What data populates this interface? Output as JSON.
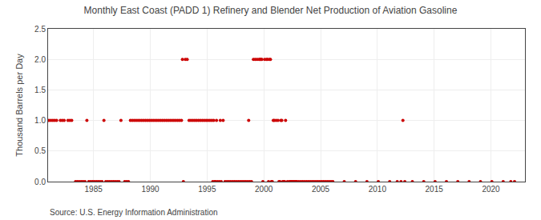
{
  "chart_data": {
    "type": "scatter",
    "title": "Monthly East Coast (PADD 1) Refinery and Blender Net Production of Aviation Gasoline",
    "ylabel": "Thousand Barrels per Day",
    "annotation": "Source: U.S. Energy Information Administration",
    "color": "#cc0000",
    "marker": "circle",
    "grid": true,
    "xlim": [
      1981.0,
      2023.0
    ],
    "ylim": [
      0.0,
      2.5
    ],
    "xticks": [
      1985,
      1990,
      1995,
      2000,
      2005,
      2010,
      2015,
      2020
    ],
    "yticks": [
      {
        "value": 0.0,
        "label": "0.0"
      },
      0.5,
      {
        "value": 1.0,
        "label": "1.0"
      },
      1.5,
      {
        "value": 2.0,
        "label": "2.0"
      },
      2.5
    ],
    "x": [
      1981.083,
      1981.25,
      1981.417,
      1981.583,
      1981.75,
      1982.083,
      1982.25,
      1982.417,
      1982.75,
      1982.917,
      1983.083,
      1983.417,
      1983.583,
      1983.75,
      1983.917,
      1984.083,
      1984.25,
      1984.417,
      1984.583,
      1984.75,
      1984.917,
      1985.083,
      1985.25,
      1985.417,
      1985.583,
      1985.75,
      1985.917,
      1986.083,
      1986.25,
      1986.417,
      1986.583,
      1986.75,
      1986.917,
      1987.083,
      1987.25,
      1987.417,
      1987.75,
      1987.917,
      1988.083,
      1988.25,
      1988.417,
      1988.583,
      1988.75,
      1988.917,
      1989.083,
      1989.25,
      1989.417,
      1989.583,
      1989.75,
      1989.917,
      1990.083,
      1990.25,
      1990.417,
      1990.583,
      1990.75,
      1990.917,
      1991.083,
      1991.25,
      1991.417,
      1991.583,
      1991.75,
      1991.917,
      1992.083,
      1992.25,
      1992.417,
      1992.583,
      1992.75,
      1992.833,
      1992.917,
      1993.083,
      1993.25,
      1993.417,
      1993.583,
      1993.75,
      1993.917,
      1994.083,
      1994.25,
      1994.417,
      1994.583,
      1994.75,
      1994.917,
      1995.083,
      1995.25,
      1995.417,
      1995.5,
      1995.583,
      1995.667,
      1995.75,
      1995.833,
      1995.917,
      1996.083,
      1996.167,
      1996.25,
      1996.417,
      1996.583,
      1996.75,
      1996.917,
      1997.083,
      1997.25,
      1997.417,
      1997.583,
      1997.75,
      1997.917,
      1998.083,
      1998.25,
      1998.417,
      1998.583,
      1998.667,
      1998.75,
      1998.917,
      1999.083,
      1999.25,
      1999.417,
      1999.583,
      1999.667,
      1999.75,
      1999.833,
      1999.917,
      2000.083,
      2000.25,
      2000.333,
      2000.417,
      2000.5,
      2000.583,
      2000.667,
      2000.75,
      2000.833,
      2000.917,
      2001.083,
      2001.25,
      2001.333,
      2001.417,
      2001.5,
      2001.583,
      2001.667,
      2001.75,
      2001.833,
      2001.917,
      2002.083,
      2002.25,
      2002.333,
      2002.417,
      2002.5,
      2002.583,
      2002.667,
      2002.75,
      2002.833,
      2002.917,
      2003.083,
      2003.25,
      2003.417,
      2003.583,
      2003.75,
      2003.917,
      2004.083,
      2004.25,
      2004.417,
      2004.583,
      2004.75,
      2004.917,
      2005.083,
      2005.25,
      2005.417,
      2005.583,
      2005.75,
      2005.917,
      2006.083,
      2007.083,
      2008.083,
      2009.083,
      2010.083,
      2011.083,
      2011.75,
      2012.083,
      2012.25,
      2012.417,
      2013.083,
      2014.083,
      2015.083,
      2016.083,
      2017.083,
      2018.083,
      2019.083,
      2020.083,
      2021.083,
      2021.75,
      2022.083
    ],
    "values": [
      1.0,
      1.0,
      1.0,
      1.0,
      1.0,
      1.0,
      1.0,
      1.0,
      1.0,
      1.0,
      1.0,
      0.0,
      0.0,
      0.0,
      0.0,
      0.0,
      0.0,
      1.0,
      0.0,
      0.0,
      0.0,
      0.0,
      0.0,
      0.0,
      0.0,
      0.0,
      1.0,
      0.0,
      0.0,
      0.0,
      0.0,
      0.0,
      0.0,
      0.0,
      0.0,
      1.0,
      0.0,
      0.0,
      0.0,
      1.0,
      1.0,
      1.0,
      1.0,
      1.0,
      1.0,
      1.0,
      1.0,
      1.0,
      1.0,
      1.0,
      1.0,
      1.0,
      1.0,
      1.0,
      1.0,
      1.0,
      1.0,
      1.0,
      1.0,
      1.0,
      1.0,
      1.0,
      1.0,
      1.0,
      1.0,
      1.0,
      1.0,
      2.0,
      0.0,
      2.0,
      2.0,
      1.0,
      1.0,
      1.0,
      1.0,
      1.0,
      1.0,
      1.0,
      1.0,
      1.0,
      1.0,
      1.0,
      1.0,
      1.0,
      0.0,
      1.0,
      0.0,
      0.0,
      1.0,
      0.0,
      0.0,
      1.0,
      0.0,
      1.0,
      0.0,
      0.0,
      0.0,
      0.0,
      0.0,
      0.0,
      0.0,
      0.0,
      0.0,
      0.0,
      0.0,
      0.0,
      0.0,
      1.0,
      0.0,
      0.0,
      2.0,
      2.0,
      2.0,
      2.0,
      2.0,
      2.0,
      2.0,
      0.0,
      2.0,
      2.0,
      2.0,
      0.0,
      2.0,
      2.0,
      0.0,
      0.0,
      1.0,
      1.0,
      1.0,
      1.0,
      0.0,
      0.0,
      1.0,
      1.0,
      0.0,
      0.0,
      0.0,
      1.0,
      0.0,
      0.0,
      0.0,
      0.0,
      0.0,
      0.0,
      0.0,
      0.0,
      0.0,
      0.0,
      0.0,
      0.0,
      0.0,
      0.0,
      0.0,
      0.0,
      0.0,
      0.0,
      0.0,
      0.0,
      0.0,
      0.0,
      0.0,
      0.0,
      0.0,
      0.0,
      0.0,
      0.0,
      0.0,
      0.0,
      0.0,
      0.0,
      0.0,
      0.0,
      0.0,
      0.0,
      1.0,
      0.0,
      0.0,
      0.0,
      0.0,
      0.0,
      0.0,
      0.0,
      0.0,
      0.0,
      0.0,
      0.0,
      0.0
    ]
  }
}
